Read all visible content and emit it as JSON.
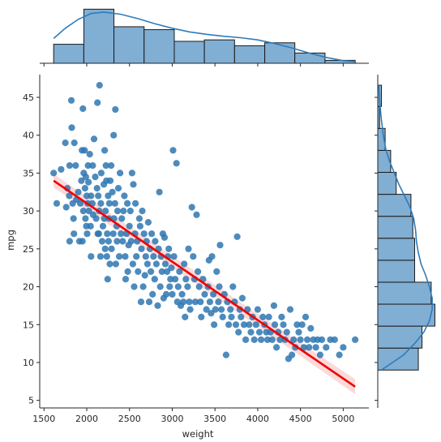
{
  "chart_data": {
    "type": "scatter",
    "kind": "jointplot-reg",
    "xlabel": "weight",
    "ylabel": "mpg",
    "xlim": [
      1450,
      5300
    ],
    "ylim": [
      4,
      48
    ],
    "xticks": [
      1500,
      2000,
      2500,
      3000,
      3500,
      4000,
      4500,
      5000
    ],
    "yticks": [
      5,
      10,
      15,
      20,
      25,
      30,
      35,
      40,
      45
    ],
    "colors": {
      "points": "#2e77b2",
      "hist": "#81aed3",
      "kde": "#2f7bb8",
      "regression": "#ee0000"
    },
    "regression": {
      "x": [
        1613,
        5140
      ],
      "y": [
        34.0,
        6.8
      ],
      "ci_halfwidth": [
        0.9,
        0.6,
        1.0
      ]
    },
    "marginal_x": {
      "bin_edges": [
        1613,
        1966,
        2318,
        2671,
        3024,
        3376,
        3729,
        4082,
        4434,
        4787,
        5140
      ],
      "counts": [
        13,
        37,
        25,
        23,
        15,
        16,
        12,
        14,
        7,
        2
      ],
      "kde": [
        [
          1613,
          17
        ],
        [
          1750,
          24
        ],
        [
          1900,
          30
        ],
        [
          2050,
          34
        ],
        [
          2200,
          35
        ],
        [
          2400,
          33.5
        ],
        [
          2600,
          30.5
        ],
        [
          2800,
          27
        ],
        [
          3000,
          24
        ],
        [
          3200,
          21.5
        ],
        [
          3400,
          19.8
        ],
        [
          3600,
          18.5
        ],
        [
          3800,
          17.5
        ],
        [
          4000,
          16
        ],
        [
          4200,
          13.5
        ],
        [
          4400,
          10.5
        ],
        [
          4600,
          7
        ],
        [
          4800,
          4
        ],
        [
          5000,
          1.8
        ],
        [
          5140,
          1.2
        ]
      ]
    },
    "marginal_y": {
      "bin_edges": [
        9,
        11.9,
        14.8,
        17.7,
        20.6,
        23.5,
        26.4,
        29.3,
        32.2,
        35.1,
        38,
        40.9,
        43.8,
        46.6
      ],
      "counts": [
        22,
        24,
        31,
        29,
        20,
        20,
        19,
        18,
        10,
        7,
        4,
        1,
        2
      ],
      "kde": [
        [
          9,
          2
        ],
        [
          10,
          8
        ],
        [
          11,
          14
        ],
        [
          12.5,
          20
        ],
        [
          14,
          25
        ],
        [
          15.5,
          28
        ],
        [
          17,
          29.5
        ],
        [
          18.5,
          29.5
        ],
        [
          20,
          28
        ],
        [
          21.5,
          26
        ],
        [
          23,
          23.5
        ],
        [
          24.5,
          22
        ],
        [
          26,
          21
        ],
        [
          27.5,
          20.5
        ],
        [
          29,
          19.5
        ],
        [
          30.5,
          17.5
        ],
        [
          32,
          14.5
        ],
        [
          33.5,
          11.5
        ],
        [
          35,
          9
        ],
        [
          36.5,
          6.5
        ],
        [
          38,
          4.5
        ],
        [
          40,
          3
        ],
        [
          42,
          2
        ],
        [
          44,
          1.2
        ],
        [
          46.6,
          0.5
        ]
      ]
    },
    "points": [
      [
        1613,
        35
      ],
      [
        1649,
        31
      ],
      [
        1700,
        35.5
      ],
      [
        1750,
        39
      ],
      [
        1760,
        30.5
      ],
      [
        1773,
        33
      ],
      [
        1795,
        32
      ],
      [
        1800,
        26
      ],
      [
        1800,
        36
      ],
      [
        1820,
        44.6
      ],
      [
        1825,
        41
      ],
      [
        1835,
        31
      ],
      [
        1845,
        29
      ],
      [
        1850,
        27
      ],
      [
        1855,
        39
      ],
      [
        1870,
        36
      ],
      [
        1880,
        31.5
      ],
      [
        1900,
        32.5
      ],
      [
        1915,
        26
      ],
      [
        1925,
        31
      ],
      [
        1937,
        34
      ],
      [
        1945,
        38
      ],
      [
        1950,
        26
      ],
      [
        1955,
        43.5
      ],
      [
        1960,
        30
      ],
      [
        1965,
        35
      ],
      [
        1975,
        38
      ],
      [
        1980,
        33
      ],
      [
        1985,
        29
      ],
      [
        1990,
        34.5
      ],
      [
        1995,
        28
      ],
      [
        2000,
        32
      ],
      [
        2005,
        27
      ],
      [
        2010,
        31
      ],
      [
        2015,
        36
      ],
      [
        2020,
        33.8
      ],
      [
        2025,
        30
      ],
      [
        2035,
        37.5
      ],
      [
        2045,
        28
      ],
      [
        2050,
        32
      ],
      [
        2050,
        24
      ],
      [
        2065,
        31
      ],
      [
        2070,
        36
      ],
      [
        2075,
        29.5
      ],
      [
        2085,
        39.5
      ],
      [
        2100,
        34.5
      ],
      [
        2110,
        29
      ],
      [
        2120,
        33
      ],
      [
        2125,
        44.3
      ],
      [
        2130,
        27
      ],
      [
        2135,
        32
      ],
      [
        2140,
        27
      ],
      [
        2145,
        30
      ],
      [
        2150,
        46.6
      ],
      [
        2160,
        24
      ],
      [
        2165,
        31
      ],
      [
        2170,
        35
      ],
      [
        2180,
        26
      ],
      [
        2190,
        28
      ],
      [
        2200,
        33.5
      ],
      [
        2205,
        29
      ],
      [
        2210,
        38
      ],
      [
        2215,
        25
      ],
      [
        2220,
        30
      ],
      [
        2225,
        36
      ],
      [
        2230,
        34
      ],
      [
        2235,
        24
      ],
      [
        2240,
        27
      ],
      [
        2245,
        21
      ],
      [
        2250,
        32
      ],
      [
        2255,
        26
      ],
      [
        2260,
        29
      ],
      [
        2265,
        31
      ],
      [
        2270,
        23
      ],
      [
        2275,
        34
      ],
      [
        2285,
        36
      ],
      [
        2290,
        25
      ],
      [
        2300,
        32.5
      ],
      [
        2310,
        27
      ],
      [
        2315,
        40
      ],
      [
        2320,
        29
      ],
      [
        2330,
        31
      ],
      [
        2335,
        43.4
      ],
      [
        2340,
        23
      ],
      [
        2350,
        28
      ],
      [
        2355,
        26
      ],
      [
        2360,
        30
      ],
      [
        2370,
        33
      ],
      [
        2380,
        24
      ],
      [
        2390,
        35
      ],
      [
        2400,
        27
      ],
      [
        2410,
        29
      ],
      [
        2420,
        26
      ],
      [
        2430,
        30
      ],
      [
        2440,
        32
      ],
      [
        2450,
        24
      ],
      [
        2455,
        21
      ],
      [
        2465,
        27
      ],
      [
        2475,
        31
      ],
      [
        2480,
        22
      ],
      [
        2490,
        25.5
      ],
      [
        2500,
        28
      ],
      [
        2510,
        30
      ],
      [
        2520,
        26
      ],
      [
        2530,
        35
      ],
      [
        2540,
        23
      ],
      [
        2545,
        33.5
      ],
      [
        2555,
        20
      ],
      [
        2565,
        27
      ],
      [
        2570,
        31
      ],
      [
        2580,
        24
      ],
      [
        2590,
        26
      ],
      [
        2600,
        22
      ],
      [
        2615,
        29
      ],
      [
        2625,
        28
      ],
      [
        2635,
        18
      ],
      [
        2640,
        25
      ],
      [
        2650,
        30
      ],
      [
        2660,
        20
      ],
      [
        2670,
        27
      ],
      [
        2680,
        21.5
      ],
      [
        2690,
        24
      ],
      [
        2700,
        26
      ],
      [
        2710,
        23
      ],
      [
        2720,
        28.5
      ],
      [
        2730,
        18
      ],
      [
        2740,
        25
      ],
      [
        2750,
        22
      ],
      [
        2760,
        27
      ],
      [
        2770,
        19
      ],
      [
        2780,
        24
      ],
      [
        2795,
        21
      ],
      [
        2800,
        26
      ],
      [
        2815,
        23
      ],
      [
        2830,
        17.5
      ],
      [
        2840,
        25
      ],
      [
        2850,
        32.5
      ],
      [
        2860,
        20
      ],
      [
        2870,
        24
      ],
      [
        2880,
        22
      ],
      [
        2890,
        27
      ],
      [
        2900,
        18.5
      ],
      [
        2910,
        26.5
      ],
      [
        2920,
        23
      ],
      [
        2930,
        19
      ],
      [
        2940,
        22
      ],
      [
        2950,
        24
      ],
      [
        2960,
        25
      ],
      [
        2970,
        20
      ],
      [
        2980,
        21
      ],
      [
        2990,
        22.5
      ],
      [
        3000,
        19
      ],
      [
        3010,
        38
      ],
      [
        3020,
        24
      ],
      [
        3035,
        21
      ],
      [
        3050,
        36.3
      ],
      [
        3060,
        18
      ],
      [
        3070,
        20
      ],
      [
        3085,
        22
      ],
      [
        3100,
        17.5
      ],
      [
        3115,
        19
      ],
      [
        3130,
        18
      ],
      [
        3140,
        23
      ],
      [
        3150,
        16
      ],
      [
        3160,
        21
      ],
      [
        3180,
        20
      ],
      [
        3190,
        25
      ],
      [
        3200,
        18
      ],
      [
        3210,
        17
      ],
      [
        3230,
        30.5
      ],
      [
        3245,
        24
      ],
      [
        3260,
        21
      ],
      [
        3270,
        18
      ],
      [
        3285,
        29.5
      ],
      [
        3300,
        22
      ],
      [
        3315,
        20
      ],
      [
        3330,
        18
      ],
      [
        3340,
        16
      ],
      [
        3360,
        21
      ],
      [
        3380,
        19
      ],
      [
        3400,
        17
      ],
      [
        3420,
        20
      ],
      [
        3430,
        23.5
      ],
      [
        3440,
        18
      ],
      [
        3455,
        16.5
      ],
      [
        3465,
        24
      ],
      [
        3480,
        19
      ],
      [
        3490,
        15
      ],
      [
        3505,
        17
      ],
      [
        3520,
        22
      ],
      [
        3540,
        18
      ],
      [
        3550,
        20
      ],
      [
        3560,
        25.5
      ],
      [
        3575,
        17
      ],
      [
        3590,
        16
      ],
      [
        3610,
        19
      ],
      [
        3630,
        11
      ],
      [
        3645,
        18
      ],
      [
        3660,
        15
      ],
      [
        3680,
        17
      ],
      [
        3693,
        16
      ],
      [
        3710,
        20
      ],
      [
        3730,
        18
      ],
      [
        3745,
        15
      ],
      [
        3760,
        26.6
      ],
      [
        3775,
        14
      ],
      [
        3790,
        17
      ],
      [
        3805,
        16
      ],
      [
        3820,
        18.5
      ],
      [
        3840,
        15
      ],
      [
        3860,
        13
      ],
      [
        3880,
        17
      ],
      [
        3900,
        15
      ],
      [
        3920,
        14
      ],
      [
        3940,
        16
      ],
      [
        3960,
        13
      ],
      [
        3980,
        15
      ],
      [
        4000,
        17
      ],
      [
        4020,
        14
      ],
      [
        4040,
        13
      ],
      [
        4060,
        16
      ],
      [
        4080,
        15
      ],
      [
        4100,
        14
      ],
      [
        4115,
        13
      ],
      [
        4130,
        16
      ],
      [
        4150,
        14
      ],
      [
        4170,
        13
      ],
      [
        4190,
        17.5
      ],
      [
        4200,
        15
      ],
      [
        4220,
        12
      ],
      [
        4240,
        14
      ],
      [
        4260,
        13
      ],
      [
        4280,
        16
      ],
      [
        4300,
        15
      ],
      [
        4320,
        13
      ],
      [
        4340,
        14
      ],
      [
        4360,
        10.5
      ],
      [
        4380,
        17
      ],
      [
        4400,
        11
      ],
      [
        4420,
        13
      ],
      [
        4440,
        12
      ],
      [
        4460,
        15
      ],
      [
        4480,
        14
      ],
      [
        4500,
        13
      ],
      [
        4520,
        15
      ],
      [
        4540,
        12
      ],
      [
        4560,
        16
      ],
      [
        4580,
        13
      ],
      [
        4600,
        12
      ],
      [
        4620,
        14.5
      ],
      [
        4650,
        13
      ],
      [
        4680,
        12
      ],
      [
        4700,
        13
      ],
      [
        4730,
        11
      ],
      [
        4750,
        13
      ],
      [
        4800,
        12
      ],
      [
        4850,
        13
      ],
      [
        4900,
        13
      ],
      [
        4955,
        11
      ],
      [
        5000,
        12
      ],
      [
        5140,
        13
      ]
    ]
  }
}
